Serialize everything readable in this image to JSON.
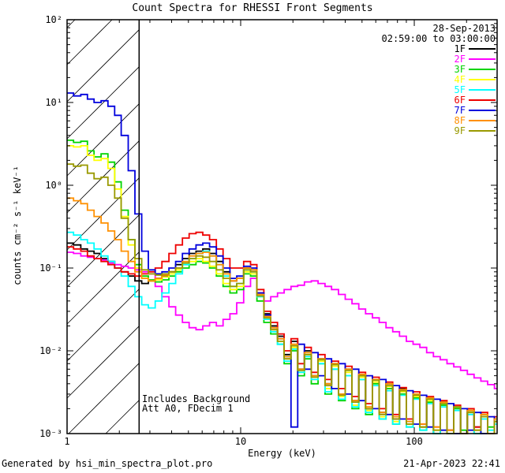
{
  "title": "Count Spectra for RHESSI Front Segments",
  "obs_date": "28-Sep-2013",
  "obs_time_range": "02:59:00 to 03:00:00",
  "annotations": {
    "line1": "Includes Background",
    "line2": "Att A0, FDecim 1"
  },
  "footer": {
    "left": "Generated by hsi_min_spectra_plot.pro",
    "right": "21-Apr-2023 22:41"
  },
  "chart_data": {
    "type": "line",
    "mode": "log-log-histogram-steps",
    "title": "Count Spectra for RHESSI Front Segments",
    "xlabel": "Energy (keV)",
    "ylabel": "counts cm⁻² s⁻¹ keV⁻¹",
    "xlim": [
      1,
      300
    ],
    "ylim": [
      0.001,
      100
    ],
    "xtick_values": [
      1,
      10,
      100
    ],
    "xtick_labels": [
      "1",
      "10",
      "100"
    ],
    "ytick_values": [
      0.001,
      0.01,
      0.1,
      1,
      10,
      100
    ],
    "ytick_labels": [
      "10⁻³",
      "10⁻²",
      "10⁻¹",
      "10⁰",
      "10¹",
      "10²"
    ],
    "grid": false,
    "legend_position": "top-right-inside",
    "hatch_region": {
      "xmin": 1,
      "xmax": 2.6
    },
    "energies": [
      1.0,
      1.09,
      1.2,
      1.31,
      1.43,
      1.57,
      1.72,
      1.88,
      2.05,
      2.25,
      2.46,
      2.69,
      2.94,
      3.22,
      3.52,
      3.86,
      4.22,
      4.62,
      5.05,
      5.53,
      6.05,
      6.62,
      7.24,
      7.92,
      8.67,
      9.49,
      10.4,
      11.4,
      12.4,
      13.6,
      14.9,
      16.3,
      17.8,
      19.5,
      21.3,
      23.3,
      25.5,
      27.9,
      30.6,
      33.4,
      36.6,
      40.0,
      43.8,
      47.9,
      52.4,
      57.4,
      62.8,
      68.7,
      75.1,
      82.2,
      90.0,
      98.4,
      107.7,
      117.8,
      128.9,
      141.0,
      154.3,
      168.8,
      184.7,
      202.1,
      221.1,
      241.9,
      264.7,
      289.6
    ],
    "series": [
      {
        "name": "1F",
        "color": "#000000",
        "values": [
          0.2,
          0.19,
          0.17,
          0.16,
          0.15,
          0.13,
          0.12,
          0.1,
          0.09,
          0.08,
          0.07,
          0.065,
          0.07,
          0.075,
          0.08,
          0.09,
          0.11,
          0.13,
          0.15,
          0.16,
          0.17,
          0.15,
          0.12,
          0.09,
          0.07,
          0.075,
          0.1,
          0.095,
          0.05,
          0.028,
          0.02,
          0.015,
          0.009,
          0.013,
          0.006,
          0.01,
          0.005,
          0.008,
          0.004,
          0.007,
          0.003,
          0.006,
          0.0025,
          0.005,
          0.002,
          0.0045,
          0.0018,
          0.004,
          0.0015,
          0.0035,
          0.0013,
          0.003,
          0.0012,
          0.0027,
          0.001,
          0.0024,
          0.0011,
          0.0021,
          0.001,
          0.0019,
          0.0012,
          0.0017,
          0.001,
          0.0015
        ]
      },
      {
        "name": "2F",
        "color": "#ff00ff",
        "values": [
          0.155,
          0.15,
          0.14,
          0.135,
          0.13,
          0.125,
          0.115,
          0.11,
          0.105,
          0.1,
          0.095,
          0.09,
          0.085,
          0.06,
          0.045,
          0.034,
          0.027,
          0.022,
          0.019,
          0.018,
          0.02,
          0.022,
          0.02,
          0.024,
          0.028,
          0.038,
          0.06,
          0.075,
          0.05,
          0.04,
          0.045,
          0.05,
          0.055,
          0.06,
          0.062,
          0.068,
          0.07,
          0.065,
          0.06,
          0.055,
          0.048,
          0.042,
          0.037,
          0.032,
          0.028,
          0.025,
          0.022,
          0.019,
          0.017,
          0.015,
          0.013,
          0.012,
          0.011,
          0.0095,
          0.0085,
          0.0078,
          0.007,
          0.0064,
          0.0058,
          0.0052,
          0.0047,
          0.0043,
          0.0039,
          0.0035
        ]
      },
      {
        "name": "3F",
        "color": "#00d400",
        "values": [
          3.5,
          3.3,
          3.4,
          2.6,
          2.2,
          2.4,
          1.9,
          1.1,
          0.5,
          0.22,
          0.11,
          0.08,
          0.072,
          0.068,
          0.072,
          0.08,
          0.09,
          0.1,
          0.11,
          0.12,
          0.115,
          0.1,
          0.08,
          0.06,
          0.05,
          0.055,
          0.085,
          0.08,
          0.04,
          0.022,
          0.016,
          0.012,
          0.007,
          0.01,
          0.005,
          0.008,
          0.004,
          0.007,
          0.003,
          0.006,
          0.0025,
          0.005,
          0.002,
          0.0045,
          0.0017,
          0.004,
          0.0015,
          0.0035,
          0.0013,
          0.003,
          0.0012,
          0.0027,
          0.0011,
          0.0024,
          0.001,
          0.0022,
          0.001,
          0.002,
          0.0011,
          0.0018,
          0.001,
          0.0016,
          0.0012,
          0.0014
        ]
      },
      {
        "name": "4F",
        "color": "#ffff00",
        "values": [
          3.0,
          2.9,
          3.0,
          2.3,
          2.0,
          2.1,
          1.6,
          0.9,
          0.42,
          0.19,
          0.1,
          0.075,
          0.07,
          0.072,
          0.078,
          0.085,
          0.095,
          0.11,
          0.12,
          0.13,
          0.12,
          0.105,
          0.085,
          0.065,
          0.055,
          0.06,
          0.09,
          0.085,
          0.045,
          0.025,
          0.018,
          0.013,
          0.008,
          0.011,
          0.0055,
          0.009,
          0.0045,
          0.0075,
          0.0035,
          0.0065,
          0.0028,
          0.0055,
          0.0022,
          0.0048,
          0.0019,
          0.0042,
          0.0016,
          0.0037,
          0.0014,
          0.0032,
          0.0013,
          0.0028,
          0.0012,
          0.0025,
          0.0011,
          0.0023,
          0.001,
          0.0021,
          0.001,
          0.0019,
          0.0011,
          0.0017,
          0.001,
          0.0015
        ]
      },
      {
        "name": "5F",
        "color": "#00ffff",
        "values": [
          0.27,
          0.25,
          0.22,
          0.2,
          0.17,
          0.14,
          0.12,
          0.1,
          0.08,
          0.06,
          0.045,
          0.036,
          0.033,
          0.04,
          0.05,
          0.065,
          0.085,
          0.11,
          0.13,
          0.15,
          0.16,
          0.14,
          0.11,
          0.08,
          0.06,
          0.065,
          0.095,
          0.09,
          0.045,
          0.024,
          0.017,
          0.012,
          0.0075,
          0.0105,
          0.0055,
          0.0085,
          0.0045,
          0.007,
          0.0032,
          0.006,
          0.0026,
          0.005,
          0.0021,
          0.0045,
          0.0018,
          0.0038,
          0.0015,
          0.0033,
          0.0013,
          0.0029,
          0.0012,
          0.0026,
          0.0011,
          0.0023,
          0.001,
          0.0021,
          0.001,
          0.0019,
          0.001,
          0.0017,
          0.001,
          0.0015,
          0.0011,
          0.0013
        ]
      },
      {
        "name": "6F",
        "color": "#ee0000",
        "values": [
          0.18,
          0.17,
          0.16,
          0.14,
          0.13,
          0.12,
          0.11,
          0.1,
          0.09,
          0.085,
          0.08,
          0.085,
          0.09,
          0.1,
          0.12,
          0.15,
          0.19,
          0.23,
          0.26,
          0.27,
          0.25,
          0.22,
          0.17,
          0.13,
          0.1,
          0.1,
          0.12,
          0.11,
          0.055,
          0.03,
          0.022,
          0.016,
          0.01,
          0.014,
          0.007,
          0.011,
          0.0055,
          0.009,
          0.0045,
          0.0075,
          0.0035,
          0.0065,
          0.0028,
          0.0055,
          0.0023,
          0.0048,
          0.002,
          0.0042,
          0.0017,
          0.0036,
          0.0015,
          0.0032,
          0.0013,
          0.0028,
          0.0012,
          0.0025,
          0.0011,
          0.0022,
          0.001,
          0.002,
          0.0012,
          0.0018,
          0.001,
          0.0016
        ]
      },
      {
        "name": "7F",
        "color": "#0000dd",
        "values": [
          13,
          12,
          12.5,
          11,
          10,
          10.5,
          9.0,
          7.0,
          4.0,
          1.5,
          0.45,
          0.16,
          0.095,
          0.085,
          0.09,
          0.1,
          0.12,
          0.15,
          0.17,
          0.19,
          0.2,
          0.18,
          0.14,
          0.1,
          0.075,
          0.08,
          0.105,
          0.1,
          0.05,
          0.027,
          0.019,
          0.014,
          0.0085,
          0.0012,
          0.012,
          0.006,
          0.0095,
          0.005,
          0.008,
          0.0035,
          0.007,
          0.003,
          0.006,
          0.0025,
          0.005,
          0.002,
          0.0045,
          0.0017,
          0.0038,
          0.0015,
          0.0033,
          0.0013,
          0.0029,
          0.0012,
          0.0026,
          0.0011,
          0.0023,
          0.001,
          0.002,
          0.0011,
          0.0018,
          0.001,
          0.0016,
          0.0014
        ]
      },
      {
        "name": "8F",
        "color": "#ff9000",
        "values": [
          0.7,
          0.65,
          0.6,
          0.5,
          0.42,
          0.35,
          0.28,
          0.22,
          0.16,
          0.12,
          0.09,
          0.075,
          0.07,
          0.075,
          0.082,
          0.09,
          0.1,
          0.12,
          0.14,
          0.15,
          0.155,
          0.14,
          0.11,
          0.085,
          0.07,
          0.075,
          0.1,
          0.095,
          0.048,
          0.026,
          0.019,
          0.014,
          0.0085,
          0.012,
          0.006,
          0.0095,
          0.005,
          0.008,
          0.004,
          0.007,
          0.003,
          0.006,
          0.0025,
          0.0052,
          0.0021,
          0.0045,
          0.0018,
          0.004,
          0.0016,
          0.0034,
          0.0014,
          0.003,
          0.0013,
          0.0027,
          0.0012,
          0.0024,
          0.0011,
          0.0021,
          0.001,
          0.0019,
          0.0011,
          0.0017,
          0.001,
          0.0015
        ]
      },
      {
        "name": "9F",
        "color": "#999900",
        "values": [
          1.8,
          1.7,
          1.75,
          1.4,
          1.2,
          1.25,
          1.0,
          0.7,
          0.4,
          0.22,
          0.13,
          0.095,
          0.085,
          0.082,
          0.085,
          0.09,
          0.1,
          0.115,
          0.13,
          0.14,
          0.135,
          0.12,
          0.095,
          0.075,
          0.06,
          0.065,
          0.095,
          0.09,
          0.046,
          0.025,
          0.018,
          0.013,
          0.008,
          0.0115,
          0.0058,
          0.009,
          0.0048,
          0.0078,
          0.0038,
          0.0068,
          0.0029,
          0.0058,
          0.0024,
          0.005,
          0.002,
          0.0044,
          0.0017,
          0.0038,
          0.0015,
          0.0033,
          0.0013,
          0.0029,
          0.0012,
          0.0026,
          0.0011,
          0.0023,
          0.001,
          0.0021,
          0.001,
          0.0018,
          0.0011,
          0.0016,
          0.001,
          0.0014
        ]
      }
    ]
  }
}
